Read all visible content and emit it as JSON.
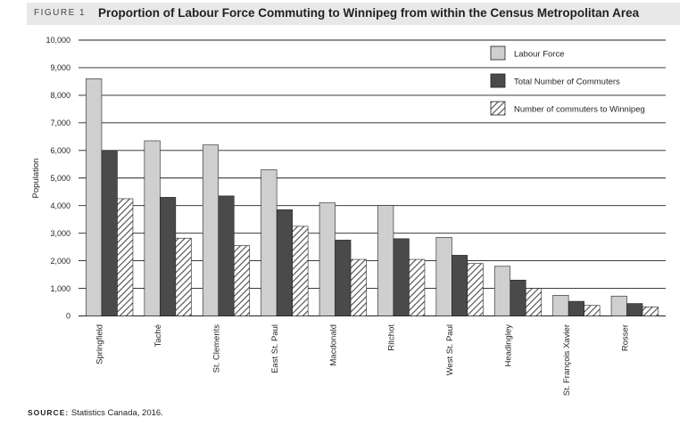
{
  "figure": {
    "label": "FIGURE 1",
    "title": "Proportion of Labour Force Commuting to Winnipeg from within the Census Metropolitan Area"
  },
  "source": {
    "label": "SOURCE:",
    "text": "Statistics Canada, 2016."
  },
  "colors": {
    "labour_force": "#cfcfcf",
    "total_commuters": "#4a4a4a",
    "hatch": "#4a4a4a",
    "gridline": "#231f20"
  },
  "chart_data": {
    "type": "bar",
    "title": "Proportion of Labour Force Commuting to Winnipeg from within the Census Metropolitan Area",
    "xlabel": "",
    "ylabel": "Population",
    "ylim": [
      0,
      10000
    ],
    "yticks": [
      0,
      1000,
      2000,
      3000,
      4000,
      5000,
      6000,
      7000,
      8000,
      9000,
      10000
    ],
    "ytick_labels": [
      "0",
      "1,000",
      "2,000",
      "3,000",
      "4,000",
      "5,000",
      "6,000",
      "7,000",
      "8,000",
      "9,000",
      "10,000"
    ],
    "grid": "horizontal",
    "legend_position": "top-right",
    "categories": [
      "Springfield",
      "Taché",
      "St. Clements",
      "East St. Paul",
      "Macdonald",
      "Ritchot",
      "West St. Paul",
      "Headingley",
      "St. François Xavier",
      "Rosser"
    ],
    "series": [
      {
        "name": "Labour Force",
        "style": "solid-light",
        "values": [
          8600,
          6350,
          6200,
          5300,
          4100,
          4000,
          2850,
          1800,
          750,
          720
        ]
      },
      {
        "name": "Total Number of Commuters",
        "style": "solid-dark",
        "values": [
          6000,
          4300,
          4350,
          3850,
          2750,
          2800,
          2200,
          1300,
          530,
          450
        ]
      },
      {
        "name": "Number of commuters to Winnipeg",
        "style": "hatched",
        "values": [
          4250,
          2820,
          2550,
          3250,
          2050,
          2050,
          1900,
          1000,
          380,
          330
        ]
      }
    ]
  }
}
